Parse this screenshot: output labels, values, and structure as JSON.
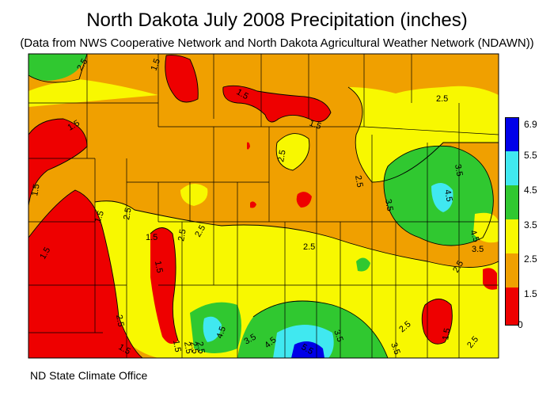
{
  "title": "North Dakota July 2008 Precipitation (inches)",
  "subtitle": "(Data from NWS Cooperative Network and North Dakota Agricultural Weather Network (NDAWN))",
  "credit": "ND State Climate Office",
  "legend": {
    "labels": [
      "6.9",
      "5.5",
      "4.5",
      "3.5",
      "2.5",
      "1.5",
      "0"
    ],
    "bins": [
      {
        "range": "5.5-6.9",
        "color": "#0000e8"
      },
      {
        "range": "4.5-5.5",
        "color": "#40e8f0"
      },
      {
        "range": "3.5-4.5",
        "color": "#30c830"
      },
      {
        "range": "2.5-3.5",
        "color": "#f8f800"
      },
      {
        "range": "1.5-2.5",
        "color": "#f0a000"
      },
      {
        "range": "0-1.5",
        "color": "#ee0000"
      }
    ]
  },
  "contour_labels": [
    "2.5",
    "1.5",
    "1.5",
    "1.5",
    "2.5",
    "1.5",
    "1.5",
    "1.5",
    "2.5",
    "2.5",
    "1.5",
    "1.5",
    "1.5",
    "2.5",
    "2.5",
    "3.5",
    "3.5",
    "4.5",
    "4.5",
    "3.5",
    "2.5",
    "2.5",
    "2.5",
    "1.5",
    "4.5",
    "3.5",
    "4.5",
    "5.5",
    "3.5",
    "2.5",
    "3.5",
    "1.5",
    "2.5",
    "2.5",
    "2.5",
    "2.5",
    "2.5",
    "1.5"
  ]
}
